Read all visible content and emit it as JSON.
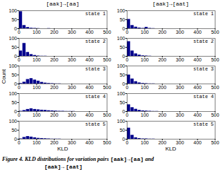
{
  "chart_data": [
    {
      "type": "histogram",
      "title": "[aak]→[aa]",
      "annotations": [
        "state 1"
      ],
      "color": "#00008B",
      "bins": [
        0,
        20,
        40,
        60,
        80,
        100,
        120,
        140,
        160,
        180,
        200,
        220,
        240,
        260,
        280,
        300,
        320,
        340,
        360,
        380,
        400,
        420,
        440,
        460,
        480,
        500
      ],
      "values": [
        95,
        18,
        7,
        3,
        2,
        1,
        0,
        0,
        1,
        0,
        0,
        0,
        0,
        0,
        0,
        0,
        0,
        0,
        0,
        0,
        0,
        0,
        0,
        0,
        0
      ],
      "xlim": [
        0,
        500
      ],
      "ylim": [
        0,
        100
      ],
      "xticks": [
        0,
        100,
        200,
        300,
        400,
        500
      ],
      "yticks": [
        0,
        50,
        100
      ]
    },
    {
      "type": "histogram",
      "annotations": [
        "state 2"
      ],
      "color": "#00008B",
      "bins": [
        0,
        20,
        40,
        60,
        80,
        100,
        120,
        140,
        160,
        180,
        200,
        220,
        240,
        260,
        280,
        300,
        320,
        340,
        360,
        380,
        400,
        420,
        440,
        460,
        480,
        500
      ],
      "values": [
        30,
        72,
        22,
        10,
        5,
        2,
        1,
        1,
        0,
        0,
        0,
        0,
        0,
        0,
        0,
        0,
        0,
        0,
        0,
        0,
        0,
        0,
        0,
        0,
        0
      ],
      "xlim": [
        0,
        500
      ],
      "ylim": [
        0,
        100
      ],
      "xticks": [
        0,
        100,
        200,
        300,
        400,
        500
      ],
      "yticks": [
        0,
        50,
        100
      ]
    },
    {
      "type": "histogram",
      "annotations": [
        "state 3"
      ],
      "color": "#00008B",
      "bins": [
        0,
        20,
        40,
        60,
        80,
        100,
        120,
        140,
        160,
        180,
        200,
        220,
        240,
        260,
        280,
        300,
        320,
        340,
        360,
        380,
        400,
        420,
        440,
        460,
        480,
        500
      ],
      "values": [
        3,
        10,
        25,
        30,
        22,
        16,
        9,
        5,
        3,
        2,
        1,
        1,
        0,
        0,
        0,
        0,
        0,
        0,
        0,
        0,
        0,
        0,
        0,
        0,
        0
      ],
      "xlim": [
        0,
        500
      ],
      "ylim": [
        0,
        100
      ],
      "xticks": [
        0,
        100,
        200,
        300,
        400,
        500
      ],
      "yticks": [
        0,
        50,
        100
      ]
    },
    {
      "type": "histogram",
      "annotations": [
        "state 4"
      ],
      "color": "#00008B",
      "bins": [
        0,
        20,
        40,
        60,
        80,
        100,
        120,
        140,
        160,
        180,
        200,
        220,
        240,
        260,
        280,
        300,
        320,
        340,
        360,
        380,
        400,
        420,
        440,
        460,
        480,
        500
      ],
      "values": [
        2,
        6,
        12,
        16,
        12,
        10,
        8,
        7,
        5,
        4,
        3,
        2,
        2,
        1,
        1,
        1,
        0,
        0,
        0,
        0,
        0,
        0,
        0,
        0,
        0
      ],
      "xlim": [
        0,
        500
      ],
      "ylim": [
        0,
        100
      ],
      "xticks": [
        0,
        100,
        200,
        300,
        400,
        500
      ],
      "yticks": [
        0,
        50,
        100
      ]
    },
    {
      "type": "histogram",
      "xlabel": "KLD",
      "annotations": [
        "state 5"
      ],
      "color": "#00008B",
      "bins": [
        0,
        20,
        40,
        60,
        80,
        100,
        120,
        140,
        160,
        180,
        200,
        220,
        240,
        260,
        280,
        300,
        320,
        340,
        360,
        380,
        400,
        420,
        440,
        460,
        480,
        500
      ],
      "values": [
        2,
        10,
        15,
        12,
        8,
        5,
        4,
        3,
        2,
        1,
        1,
        1,
        0,
        0,
        0,
        0,
        0,
        0,
        0,
        0,
        0,
        0,
        0,
        0,
        0
      ],
      "xlim": [
        0,
        500
      ],
      "ylim": [
        0,
        100
      ],
      "xticks": [
        0,
        100,
        200,
        300,
        400,
        500
      ],
      "yticks": [
        0,
        50,
        100
      ]
    },
    {
      "type": "histogram",
      "title": "[aak]→[aat]",
      "annotations": [
        "state 1"
      ],
      "color": "#00008B",
      "bins": [
        0,
        20,
        40,
        60,
        80,
        100,
        120,
        140,
        160,
        180,
        200,
        220,
        240,
        260,
        280,
        300,
        320,
        340,
        360,
        380,
        400,
        420,
        440,
        460,
        480,
        500
      ],
      "values": [
        52,
        18,
        9,
        4,
        2,
        8,
        2,
        1,
        0,
        0,
        0,
        0,
        0,
        0,
        0,
        0,
        0,
        0,
        0,
        0,
        0,
        0,
        0,
        0,
        0
      ],
      "xlim": [
        0,
        500
      ],
      "ylim": [
        0,
        100
      ],
      "xticks": [
        0,
        100,
        200,
        300,
        400,
        500
      ],
      "yticks": [
        0,
        50,
        100
      ]
    },
    {
      "type": "histogram",
      "annotations": [
        "state 2"
      ],
      "color": "#00008B",
      "bins": [
        0,
        20,
        40,
        60,
        80,
        100,
        120,
        140,
        160,
        180,
        200,
        220,
        240,
        260,
        280,
        300,
        320,
        340,
        360,
        380,
        400,
        420,
        440,
        460,
        480,
        500
      ],
      "values": [
        82,
        30,
        14,
        7,
        3,
        2,
        1,
        0,
        0,
        0,
        0,
        0,
        0,
        0,
        0,
        0,
        0,
        0,
        0,
        0,
        0,
        0,
        0,
        0,
        0
      ],
      "xlim": [
        0,
        500
      ],
      "ylim": [
        0,
        100
      ],
      "xticks": [
        0,
        100,
        200,
        300,
        400,
        500
      ],
      "yticks": [
        0,
        50,
        100
      ]
    },
    {
      "type": "histogram",
      "annotations": [
        "state 3"
      ],
      "color": "#00008B",
      "bins": [
        0,
        20,
        40,
        60,
        80,
        100,
        120,
        140,
        160,
        180,
        200,
        220,
        240,
        260,
        280,
        300,
        320,
        340,
        360,
        380,
        400,
        420,
        440,
        460,
        480,
        500
      ],
      "values": [
        50,
        28,
        13,
        6,
        3,
        2,
        1,
        1,
        0,
        0,
        0,
        0,
        0,
        0,
        0,
        0,
        0,
        0,
        0,
        0,
        0,
        0,
        0,
        0,
        0
      ],
      "xlim": [
        0,
        500
      ],
      "ylim": [
        0,
        100
      ],
      "xticks": [
        0,
        100,
        200,
        300,
        400,
        500
      ],
      "yticks": [
        0,
        50,
        100
      ]
    },
    {
      "type": "histogram",
      "annotations": [
        "state 4"
      ],
      "color": "#00008B",
      "bins": [
        0,
        20,
        40,
        60,
        80,
        100,
        120,
        140,
        160,
        180,
        200,
        220,
        240,
        260,
        280,
        300,
        320,
        340,
        360,
        380,
        400,
        420,
        440,
        460,
        480,
        500
      ],
      "values": [
        38,
        22,
        13,
        7,
        4,
        3,
        2,
        1,
        1,
        0,
        0,
        0,
        0,
        0,
        0,
        0,
        0,
        0,
        0,
        0,
        0,
        0,
        0,
        0,
        0
      ],
      "xlim": [
        0,
        500
      ],
      "ylim": [
        0,
        100
      ],
      "xticks": [
        0,
        100,
        200,
        300,
        400,
        500
      ],
      "yticks": [
        0,
        50,
        100
      ]
    },
    {
      "type": "histogram",
      "xlabel": "KLD",
      "annotations": [
        "state 5"
      ],
      "color": "#00008B",
      "bins": [
        0,
        20,
        40,
        60,
        80,
        100,
        120,
        140,
        160,
        180,
        200,
        220,
        240,
        260,
        280,
        300,
        320,
        340,
        360,
        380,
        400,
        420,
        440,
        460,
        480,
        500
      ],
      "values": [
        62,
        22,
        8,
        4,
        2,
        2,
        1,
        1,
        0,
        0,
        0,
        0,
        0,
        0,
        0,
        0,
        0,
        0,
        0,
        0,
        0,
        0,
        0,
        0,
        0
      ],
      "xlim": [
        0,
        500
      ],
      "ylim": [
        0,
        100
      ],
      "xticks": [
        0,
        100,
        200,
        300,
        400,
        500
      ],
      "yticks": [
        0,
        50,
        100
      ]
    }
  ],
  "ylabel": "Count",
  "caption": [
    [
      "Figure 4. KLD distributions for variation pairs",
      "[aak]→[aa]",
      "and"
    ],
    [
      "[aak]→",
      "[aat]"
    ]
  ]
}
